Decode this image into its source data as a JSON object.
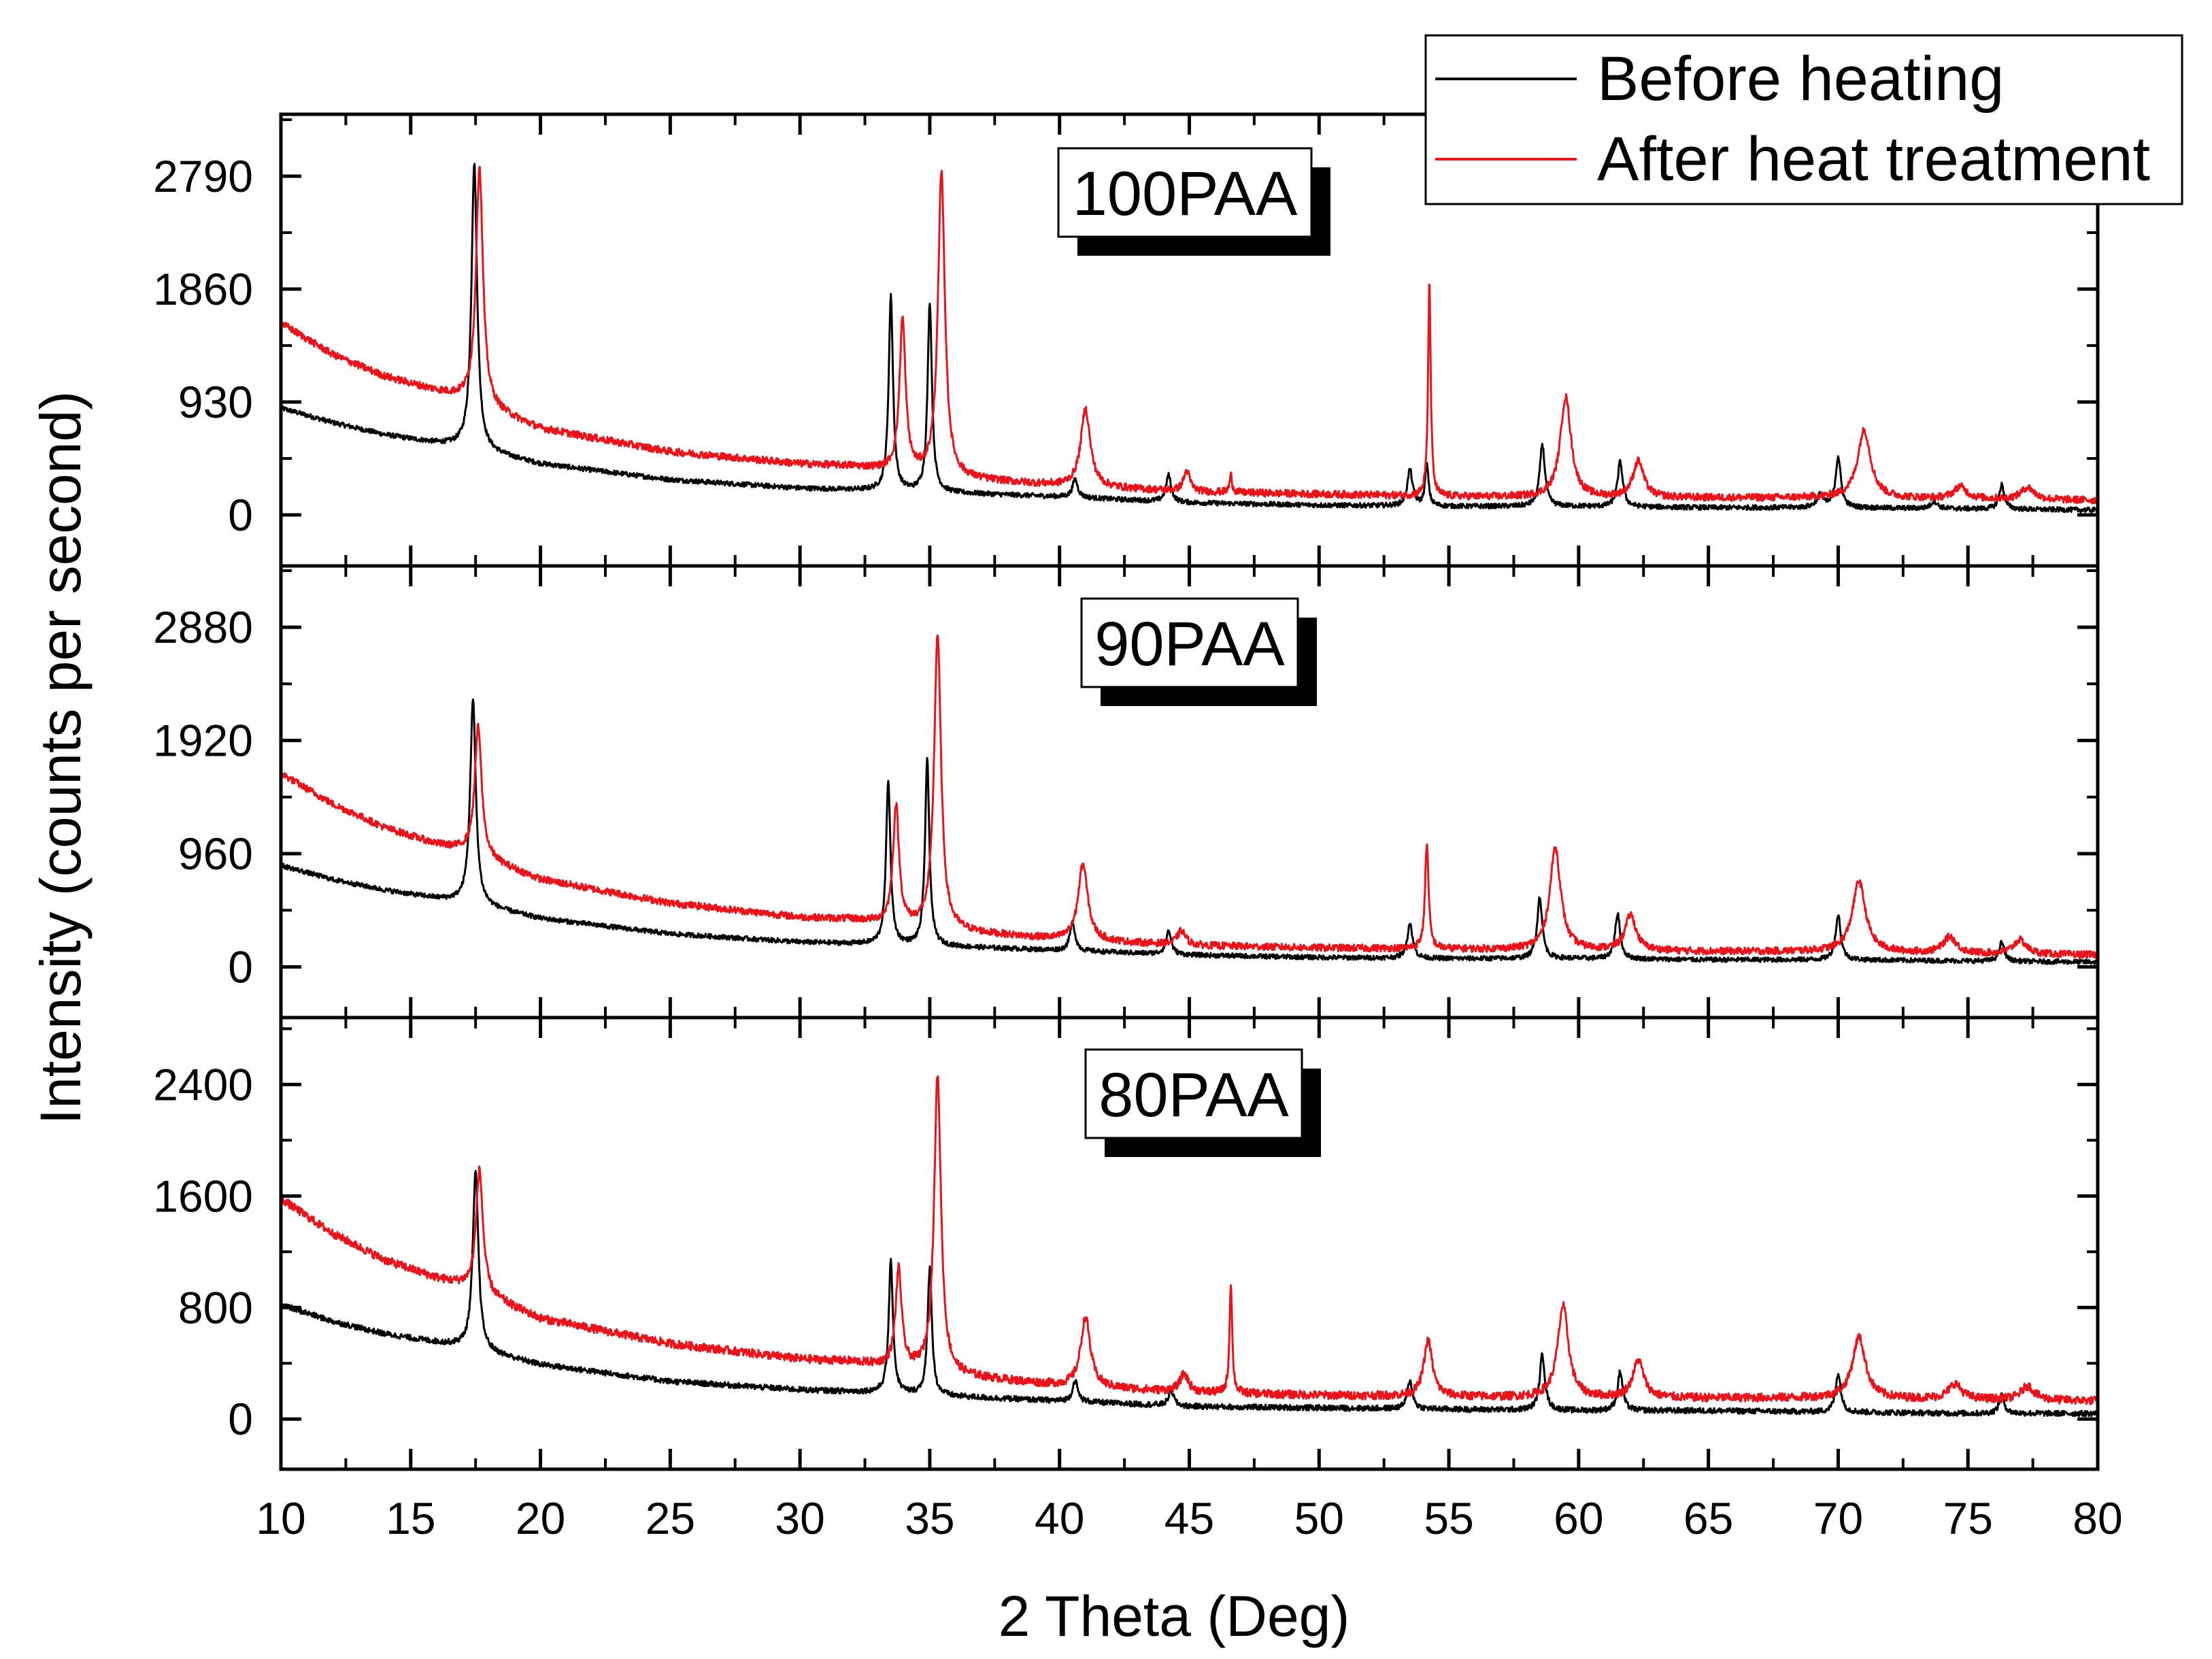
{
  "chart_data": {
    "type": "line",
    "xlabel": "2 Theta (Deg)",
    "ylabel": "Intensity (counts per second)",
    "xlim": [
      10,
      80
    ],
    "xticks": [
      10,
      15,
      20,
      25,
      30,
      35,
      40,
      45,
      50,
      55,
      60,
      65,
      70,
      75,
      80
    ],
    "legend": {
      "placement": "top-right",
      "entries": [
        {
          "name": "Before heating",
          "color": "#000000"
        },
        {
          "name": "After heat treatment",
          "color": "#e8141b"
        }
      ]
    },
    "panels": [
      {
        "label": "100PAA",
        "ylim": [
          -420,
          3300
        ],
        "yticks": [
          0,
          930,
          1860,
          2790
        ],
        "series": [
          {
            "name": "Before heating",
            "color": "#000000",
            "baseline": [
              [
                10,
                880
              ],
              [
                12,
                760
              ],
              [
                14,
                660
              ],
              [
                16,
                590
              ],
              [
                17,
                560
              ],
              [
                20,
                420
              ],
              [
                25,
                290
              ],
              [
                30,
                220
              ],
              [
                33,
                200
              ],
              [
                36,
                180
              ],
              [
                40,
                150
              ],
              [
                45,
                100
              ],
              [
                50,
                80
              ],
              [
                55,
                70
              ],
              [
                60,
                70
              ],
              [
                65,
                60
              ],
              [
                70,
                60
              ],
              [
                75,
                50
              ],
              [
                80,
                40
              ]
            ],
            "peaks": [
              [
                17.45,
                2350,
                0.13
              ],
              [
                33.5,
                1600,
                0.1
              ],
              [
                35.0,
                1560,
                0.1
              ],
              [
                40.6,
                150,
                0.12
              ],
              [
                44.2,
                220,
                0.12
              ],
              [
                53.5,
                300,
                0.12
              ],
              [
                54.15,
                340,
                0.08
              ],
              [
                58.6,
                510,
                0.12
              ],
              [
                61.6,
                370,
                0.12
              ],
              [
                69.3,
                100,
                0.15
              ],
              [
                70.0,
                420,
                0.12
              ],
              [
                73.7,
                60,
                0.15
              ],
              [
                76.3,
                200,
                0.12
              ]
            ]
          },
          {
            "name": "After heat treatment",
            "color": "#e8141b",
            "baseline": [
              [
                10,
                1580
              ],
              [
                12,
                1320
              ],
              [
                14,
                1140
              ],
              [
                16,
                1020
              ],
              [
                17,
                960
              ],
              [
                20,
                710
              ],
              [
                25,
                520
              ],
              [
                30,
                420
              ],
              [
                32,
                400
              ],
              [
                36,
                300
              ],
              [
                40,
                240
              ],
              [
                45,
                190
              ],
              [
                50,
                170
              ],
              [
                55,
                150
              ],
              [
                60,
                140
              ],
              [
                65,
                140
              ],
              [
                70,
                140
              ],
              [
                75,
                130
              ],
              [
                80,
                120
              ]
            ],
            "peaks": [
              [
                17.65,
                1960,
                0.16
              ],
              [
                33.95,
                1250,
                0.14
              ],
              [
                35.45,
                2500,
                0.16
              ],
              [
                41.0,
                640,
                0.22
              ],
              [
                44.9,
                170,
                0.15
              ],
              [
                46.6,
                140,
                0.06
              ],
              [
                54.25,
                1760,
                0.06
              ],
              [
                59.5,
                830,
                0.25
              ],
              [
                62.3,
                300,
                0.25
              ],
              [
                71.0,
                560,
                0.3
              ],
              [
                74.7,
                100,
                0.3
              ],
              [
                77.3,
                100,
                0.3
              ]
            ]
          }
        ]
      },
      {
        "label": "90PAA",
        "ylim": [
          -430,
          3400
        ],
        "yticks": [
          0,
          960,
          1920,
          2880
        ],
        "series": [
          {
            "name": "Before heating",
            "color": "#000000",
            "baseline": [
              [
                10,
                860
              ],
              [
                12,
                740
              ],
              [
                14,
                650
              ],
              [
                16,
                580
              ],
              [
                17,
                550
              ],
              [
                20,
                410
              ],
              [
                25,
                280
              ],
              [
                30,
                210
              ],
              [
                33,
                190
              ],
              [
                36,
                170
              ],
              [
                40,
                140
              ],
              [
                45,
                100
              ],
              [
                50,
                80
              ],
              [
                55,
                70
              ],
              [
                60,
                70
              ],
              [
                65,
                60
              ],
              [
                70,
                60
              ],
              [
                75,
                50
              ],
              [
                80,
                40
              ]
            ],
            "peaks": [
              [
                17.4,
                1730,
                0.13
              ],
              [
                33.4,
                1400,
                0.1
              ],
              [
                34.9,
                1570,
                0.1
              ],
              [
                40.5,
                240,
                0.12
              ],
              [
                44.2,
                200,
                0.12
              ],
              [
                53.5,
                300,
                0.12
              ],
              [
                58.5,
                520,
                0.12
              ],
              [
                61.5,
                380,
                0.12
              ],
              [
                70.0,
                380,
                0.12
              ],
              [
                76.3,
                160,
                0.12
              ]
            ]
          },
          {
            "name": "After heat treatment",
            "color": "#e8141b",
            "baseline": [
              [
                10,
                1640
              ],
              [
                12,
                1380
              ],
              [
                14,
                1180
              ],
              [
                16,
                1040
              ],
              [
                17,
                990
              ],
              [
                20,
                740
              ],
              [
                25,
                540
              ],
              [
                30,
                420
              ],
              [
                32,
                400
              ],
              [
                36,
                300
              ],
              [
                40,
                230
              ],
              [
                45,
                180
              ],
              [
                50,
                160
              ],
              [
                55,
                150
              ],
              [
                60,
                140
              ],
              [
                65,
                130
              ],
              [
                70,
                130
              ],
              [
                75,
                110
              ],
              [
                80,
                100
              ]
            ],
            "peaks": [
              [
                17.6,
                1100,
                0.16
              ],
              [
                33.7,
                1000,
                0.14
              ],
              [
                35.3,
                2500,
                0.16
              ],
              [
                40.9,
                650,
                0.22
              ],
              [
                44.7,
                120,
                0.2
              ],
              [
                54.15,
                900,
                0.08
              ],
              [
                59.1,
                870,
                0.25
              ],
              [
                62.0,
                300,
                0.25
              ],
              [
                70.8,
                600,
                0.3
              ],
              [
                74.3,
                140,
                0.3
              ],
              [
                77.0,
                120,
                0.3
              ]
            ]
          }
        ]
      },
      {
        "label": "80PAA",
        "ylim": [
          -360,
          2880
        ],
        "yticks": [
          0,
          800,
          1600,
          2400
        ],
        "series": [
          {
            "name": "Before heating",
            "color": "#000000",
            "baseline": [
              [
                10,
                820
              ],
              [
                12,
                700
              ],
              [
                14,
                610
              ],
              [
                16,
                550
              ],
              [
                17,
                520
              ],
              [
                20,
                390
              ],
              [
                25,
                270
              ],
              [
                30,
                210
              ],
              [
                33,
                190
              ],
              [
                36,
                160
              ],
              [
                40,
                130
              ],
              [
                45,
                90
              ],
              [
                50,
                80
              ],
              [
                55,
                70
              ],
              [
                60,
                60
              ],
              [
                65,
                60
              ],
              [
                70,
                50
              ],
              [
                75,
                40
              ],
              [
                80,
                40
              ]
            ],
            "peaks": [
              [
                17.5,
                1270,
                0.13
              ],
              [
                33.5,
                940,
                0.1
              ],
              [
                35.0,
                910,
                0.1
              ],
              [
                40.6,
                150,
                0.12
              ],
              [
                44.3,
                110,
                0.12
              ],
              [
                53.5,
                200,
                0.12
              ],
              [
                58.6,
                400,
                0.12
              ],
              [
                61.6,
                280,
                0.12
              ],
              [
                70.0,
                280,
                0.12
              ],
              [
                76.3,
                130,
                0.12
              ]
            ]
          },
          {
            "name": "After heat treatment",
            "color": "#e8141b",
            "baseline": [
              [
                10,
                1580
              ],
              [
                12,
                1330
              ],
              [
                14,
                1140
              ],
              [
                16,
                1010
              ],
              [
                17,
                960
              ],
              [
                20,
                720
              ],
              [
                25,
                540
              ],
              [
                30,
                430
              ],
              [
                32,
                410
              ],
              [
                36,
                310
              ],
              [
                40,
                240
              ],
              [
                45,
                190
              ],
              [
                50,
                170
              ],
              [
                55,
                160
              ],
              [
                60,
                150
              ],
              [
                65,
                150
              ],
              [
                70,
                150
              ],
              [
                75,
                140
              ],
              [
                80,
                130
              ]
            ],
            "peaks": [
              [
                17.65,
                880,
                0.16
              ],
              [
                33.8,
                700,
                0.14
              ],
              [
                35.3,
                2130,
                0.16
              ],
              [
                41.0,
                500,
                0.22
              ],
              [
                44.8,
                130,
                0.2
              ],
              [
                46.6,
                800,
                0.06
              ],
              [
                54.2,
                400,
                0.2
              ],
              [
                59.4,
                660,
                0.25
              ],
              [
                62.3,
                270,
                0.25
              ],
              [
                70.8,
                440,
                0.3
              ],
              [
                74.5,
                110,
                0.3
              ],
              [
                77.3,
                100,
                0.3
              ]
            ]
          }
        ]
      }
    ]
  }
}
